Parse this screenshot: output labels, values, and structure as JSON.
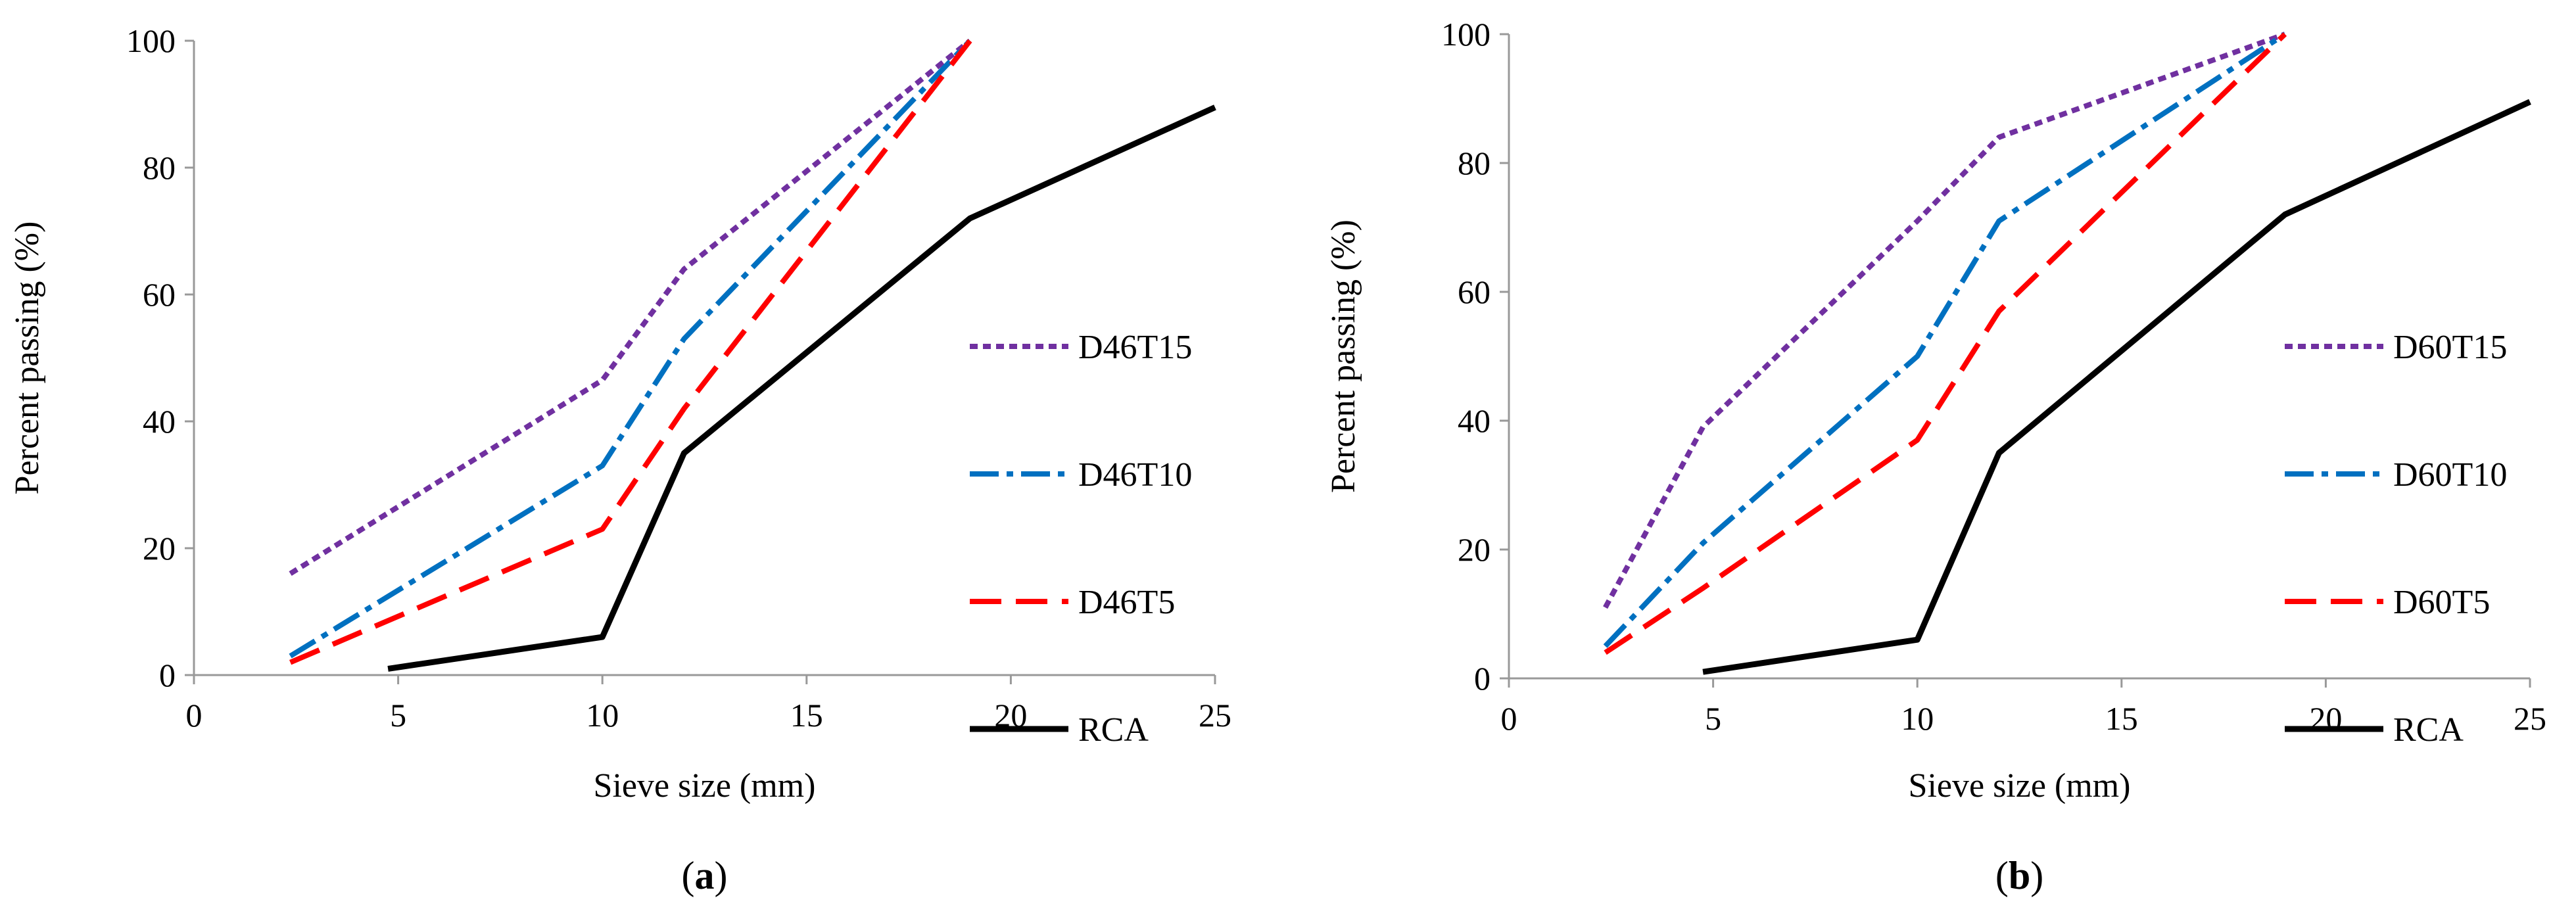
{
  "chart_data": [
    {
      "type": "line",
      "panel_label": {
        "open": "(",
        "letter": "a",
        "close": ")"
      },
      "title": "",
      "xlabel": "Sieve size (mm)",
      "ylabel": "Percent passing (%)",
      "xlim": [
        0,
        25
      ],
      "ylim": [
        0,
        100
      ],
      "xticks": [
        0,
        5,
        10,
        15,
        20,
        25
      ],
      "yticks": [
        0,
        20,
        40,
        60,
        80,
        100
      ],
      "grid": false,
      "legend_position": "right",
      "series": [
        {
          "name": "D46T15",
          "color": "#7030A0",
          "style": "dotted",
          "points": [
            [
              2.36,
              16
            ],
            [
              10,
              46.5
            ],
            [
              12,
              64
            ],
            [
              19,
              100
            ]
          ]
        },
        {
          "name": "D46T10",
          "color": "#0070C0",
          "style": "dashdot",
          "points": [
            [
              2.36,
              3
            ],
            [
              10,
              33
            ],
            [
              12,
              53
            ],
            [
              19,
              100
            ]
          ]
        },
        {
          "name": "D46T5",
          "color": "#FF0000",
          "style": "dashed",
          "points": [
            [
              2.36,
              2
            ],
            [
              10,
              23
            ],
            [
              12,
              42
            ],
            [
              19,
              100
            ]
          ]
        },
        {
          "name": "RCA",
          "color": "#000000",
          "style": "solid",
          "points": [
            [
              4.75,
              1
            ],
            [
              10,
              6
            ],
            [
              12,
              35
            ],
            [
              19,
              72
            ],
            [
              25,
              89.5
            ]
          ]
        }
      ]
    },
    {
      "type": "line",
      "panel_label": {
        "open": "(",
        "letter": "b",
        "close": ")"
      },
      "title": "",
      "xlabel": "Sieve size (mm)",
      "ylabel": "Percent passing (%)",
      "xlim": [
        0,
        25
      ],
      "ylim": [
        0,
        100
      ],
      "xticks": [
        0,
        5,
        10,
        15,
        20,
        25
      ],
      "yticks": [
        0,
        20,
        40,
        60,
        80,
        100
      ],
      "grid": false,
      "legend_position": "right",
      "series": [
        {
          "name": "D60T15",
          "color": "#7030A0",
          "style": "dotted",
          "points": [
            [
              2.36,
              11
            ],
            [
              4.75,
              39
            ],
            [
              10,
              71
            ],
            [
              12,
              84
            ],
            [
              19,
              100
            ]
          ]
        },
        {
          "name": "D60T10",
          "color": "#0070C0",
          "style": "dashdot",
          "points": [
            [
              2.36,
              5
            ],
            [
              4.75,
              21
            ],
            [
              10,
              50
            ],
            [
              12,
              71
            ],
            [
              19,
              100
            ]
          ]
        },
        {
          "name": "D60T5",
          "color": "#FF0000",
          "style": "dashed",
          "points": [
            [
              2.36,
              4
            ],
            [
              4.75,
              14
            ],
            [
              10,
              37
            ],
            [
              12,
              57
            ],
            [
              19,
              100
            ]
          ]
        },
        {
          "name": "RCA",
          "color": "#000000",
          "style": "solid",
          "points": [
            [
              4.75,
              1
            ],
            [
              10,
              6
            ],
            [
              12,
              35
            ],
            [
              19,
              72
            ],
            [
              25,
              89.5
            ]
          ]
        }
      ]
    }
  ]
}
